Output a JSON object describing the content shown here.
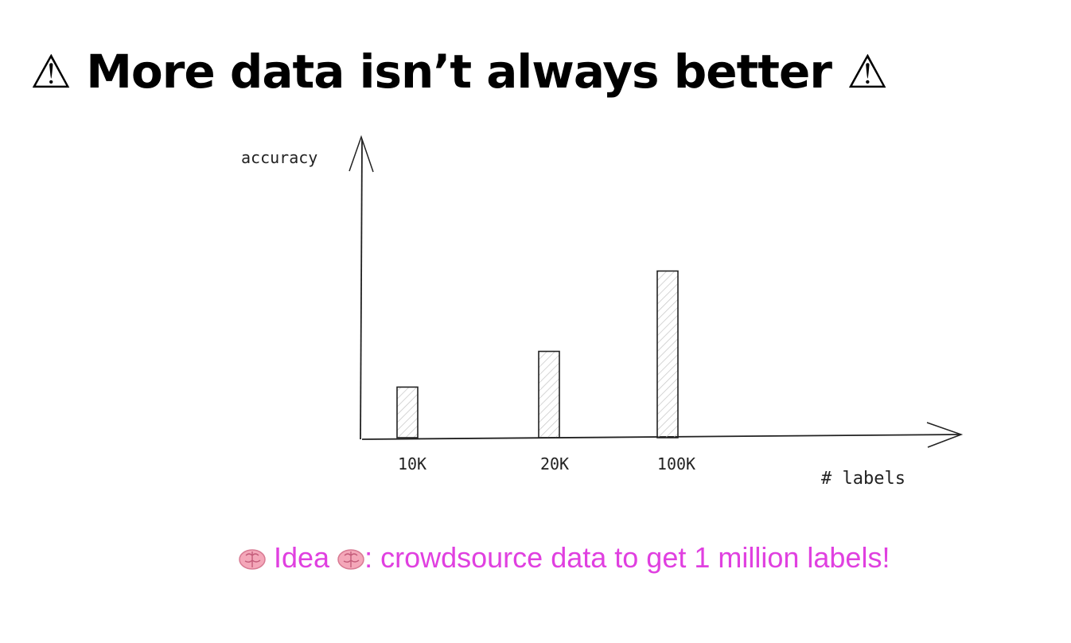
{
  "title": "⚠ More data isn’t always better ⚠",
  "caption": {
    "text_idea": "Idea",
    "text_rest": ": crowdsource data to get 1 million labels!",
    "color": "#e040e0",
    "icon": "brain-icon"
  },
  "chart_data": {
    "type": "bar",
    "xlabel": "# labels",
    "ylabel": "accuracy",
    "categories": [
      "10K",
      "20K",
      "100K"
    ],
    "values": [
      17,
      29,
      56
    ],
    "ylim": [
      0,
      100
    ],
    "grid": false,
    "bar_fill": "hatched"
  }
}
